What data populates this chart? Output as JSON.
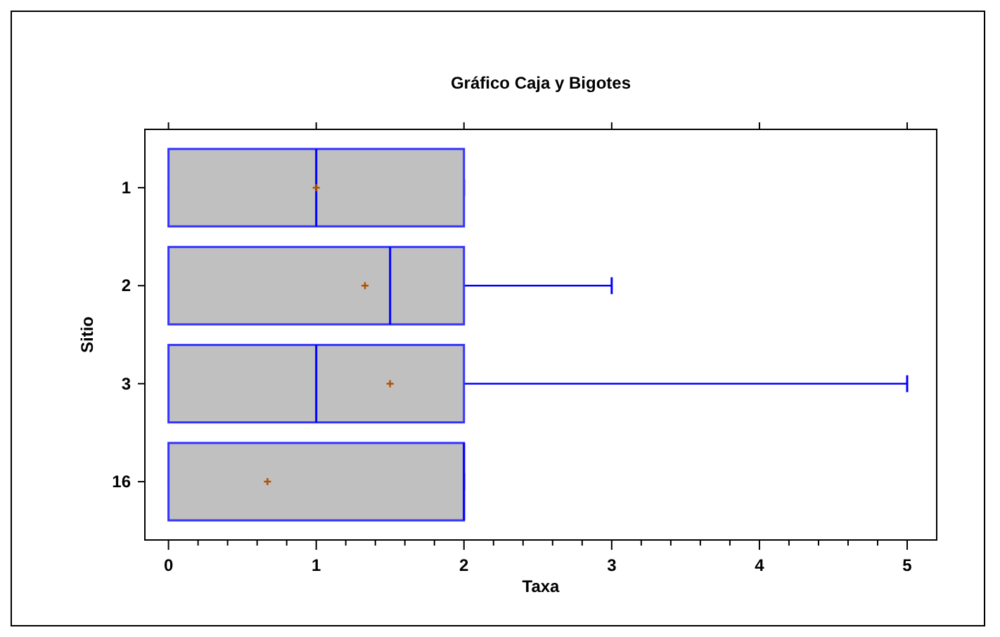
{
  "chart_data": {
    "type": "box",
    "title": "Gráfico Caja y Bigotes",
    "xlabel": "Taxa",
    "ylabel": "Sitio",
    "orientation": "horizontal",
    "categories": [
      "1",
      "2",
      "3",
      "16"
    ],
    "series": [
      {
        "color": "#c0c0c0",
        "boxes": [
          {
            "low": 0,
            "q1": 0,
            "median": 1,
            "q3": 2,
            "high": 2,
            "mean": 1
          },
          {
            "low": 0,
            "q1": 0,
            "median": 1.5,
            "q3": 2,
            "high": 3,
            "mean": 1.33
          },
          {
            "low": 0,
            "q1": 0,
            "median": 1,
            "q3": 2,
            "high": 5,
            "mean": 1.5
          },
          {
            "low": 0,
            "q1": 0,
            "median": 2,
            "q3": 2,
            "high": 2,
            "mean": 0.67
          }
        ]
      }
    ],
    "xlim": [
      -0.16,
      5.2
    ],
    "xticks": [
      0,
      {
        "value": 0.2,
        "label": null
      },
      {
        "value": 0.4,
        "label": null
      },
      {
        "value": 0.6,
        "label": null
      },
      {
        "value": 0.8,
        "label": null
      },
      1,
      {
        "value": 1.2,
        "label": null
      },
      {
        "value": 1.4,
        "label": null
      },
      {
        "value": 1.6,
        "label": null
      },
      {
        "value": 1.8,
        "label": null
      },
      2,
      {
        "value": 2.2,
        "label": null
      },
      {
        "value": 2.4,
        "label": null
      },
      {
        "value": 2.6,
        "label": null
      },
      {
        "value": 2.8,
        "label": null
      },
      3,
      {
        "value": 3.2,
        "label": null
      },
      {
        "value": 3.4,
        "label": null
      },
      {
        "value": 3.6,
        "label": null
      },
      {
        "value": 3.8,
        "label": null
      },
      4,
      {
        "value": 4.2,
        "label": null
      },
      {
        "value": 4.4,
        "label": null
      },
      {
        "value": 4.6,
        "label": null
      },
      {
        "value": 4.8,
        "label": null
      },
      5
    ],
    "grid": false
  }
}
